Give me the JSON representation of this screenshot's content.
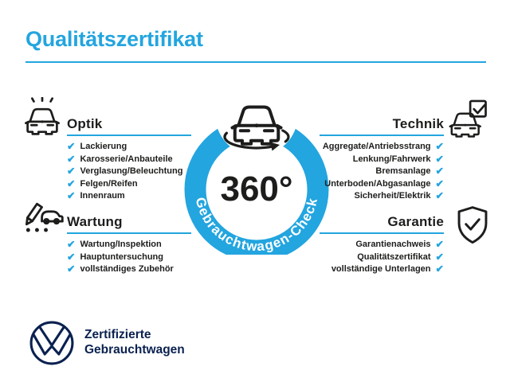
{
  "title": "Qualitätszertifikat",
  "colors": {
    "accent": "#23A5DF",
    "navy": "#0A2150",
    "ink": "#1D1D1B"
  },
  "check_glyph": "✔",
  "center_badge": {
    "degree_label": "360°",
    "ring_label": "Gebrauchtwagen-Check",
    "icon": "car-rotate-icon"
  },
  "sections": [
    {
      "id": "optik",
      "label": "Optik",
      "icon": "car-shine-icon",
      "align": "left",
      "items": [
        "Lackierung",
        "Karosserie/Anbauteile",
        "Verglasung/Beleuchtung",
        "Felgen/Reifen",
        "Innenraum"
      ]
    },
    {
      "id": "technik",
      "label": "Technik",
      "icon": "car-check-icon",
      "align": "right",
      "items": [
        "Aggregate/Antriebsstrang",
        "Lenkung/Fahrwerk",
        "Bremsanlage",
        "Unterboden/Abgasanlage",
        "Sicherheit/Elektrik"
      ]
    },
    {
      "id": "wartung",
      "label": "Wartung",
      "icon": "service-checklist-icon",
      "align": "left",
      "items": [
        "Wartung/Inspektion",
        "Hauptuntersuchung",
        "vollständiges Zubehör"
      ]
    },
    {
      "id": "garantie",
      "label": "Garantie",
      "icon": "shield-check-icon",
      "align": "right",
      "items": [
        "Garantienachweis",
        "Qualitätszertifikat",
        "vollständige Unterlagen"
      ]
    }
  ],
  "footer": {
    "logo": "vw-logo",
    "line1": "Zertifizierte",
    "line2": "Gebrauchtwagen"
  }
}
